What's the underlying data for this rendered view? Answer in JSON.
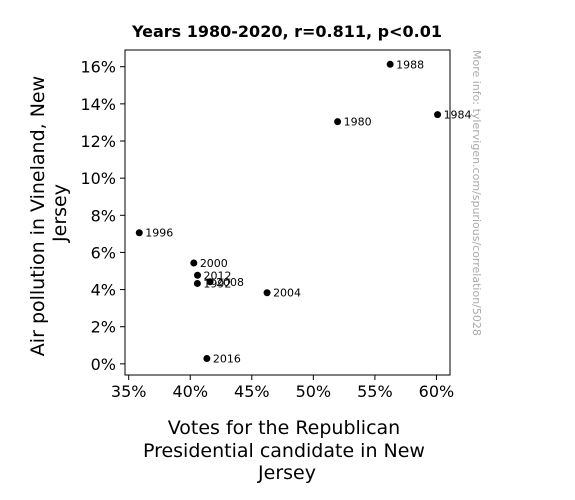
{
  "chart_data": {
    "type": "scatter",
    "title": "Years 1980-2020, r=0.811, p<0.01",
    "xlabel": "Votes for the Republican Presidential candidate in New Jersey",
    "xlabel_lines": [
      "Votes for the Republican",
      "Presidential candidate in New",
      "Jersey"
    ],
    "ylabel": "Air pollution in Vineland, New Jersey",
    "ylabel_lines": [
      "Air pollution in Vineland, New",
      "Jersey"
    ],
    "watermark": "More info: tylervigen.com/spurious/correlation/5028",
    "xlim": [
      34.7,
      61.1
    ],
    "ylim": [
      -0.6,
      16.9
    ],
    "x_ticks": [
      35,
      40,
      45,
      50,
      55,
      60
    ],
    "x_tick_labels": [
      "35%",
      "40%",
      "45%",
      "50%",
      "55%",
      "60%"
    ],
    "y_ticks": [
      0,
      2,
      4,
      6,
      8,
      10,
      12,
      14,
      16
    ],
    "y_tick_labels": [
      "0%",
      "2%",
      "4%",
      "6%",
      "8%",
      "10%",
      "12%",
      "14%",
      "16%"
    ],
    "grid": false,
    "marker_color": "#000000",
    "points": [
      {
        "label": "1980",
        "x": 51.97,
        "y": 13.04
      },
      {
        "label": "1984",
        "x": 60.09,
        "y": 13.42
      },
      {
        "label": "1988",
        "x": 56.24,
        "y": 16.13
      },
      {
        "label": "1992",
        "x": 40.58,
        "y": 4.33
      },
      {
        "label": "1996",
        "x": 35.86,
        "y": 7.06
      },
      {
        "label": "2000",
        "x": 40.29,
        "y": 5.43
      },
      {
        "label": "2004",
        "x": 46.24,
        "y": 3.83
      },
      {
        "label": "2008",
        "x": 41.61,
        "y": 4.42
      },
      {
        "label": "2012",
        "x": 40.59,
        "y": 4.77
      },
      {
        "label": "2016",
        "x": 41.35,
        "y": 0.29
      }
    ]
  }
}
